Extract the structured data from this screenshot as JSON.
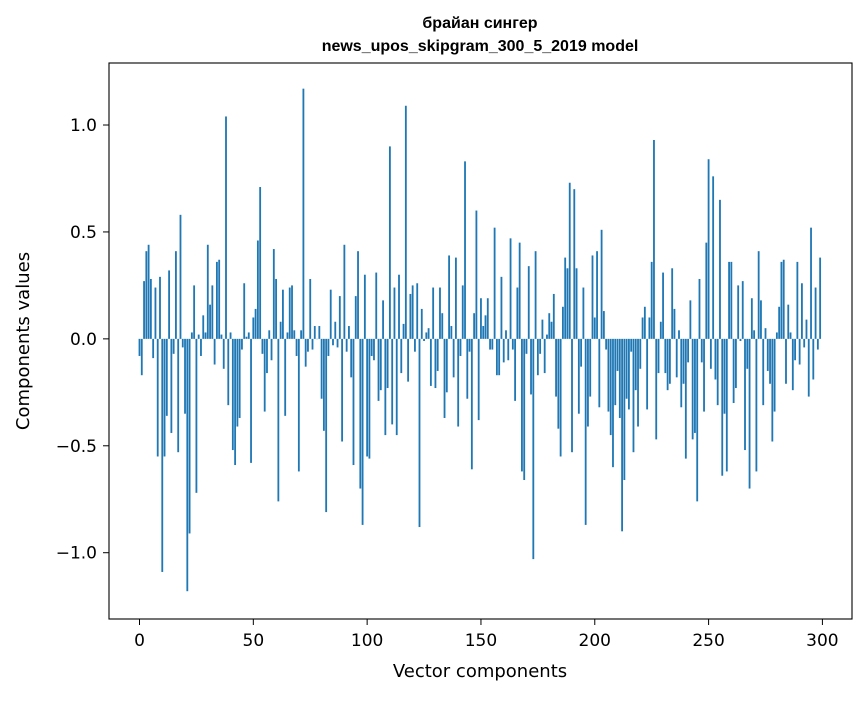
{
  "chart_data": {
    "type": "bar",
    "title_lines": [
      "брайан сингер",
      "news_upos_skipgram_300_5_2019 model"
    ],
    "xlabel": "Vector components",
    "ylabel": "Components values",
    "xlim": [
      -13.4,
      313
    ],
    "ylim": [
      -1.31,
      1.29
    ],
    "xticks": [
      0,
      50,
      100,
      150,
      200,
      250,
      300
    ],
    "yticks": [
      -1.0,
      -0.5,
      0.0,
      0.5,
      1.0
    ],
    "xtick_labels": [
      "0",
      "50",
      "100",
      "150",
      "200",
      "250",
      "300"
    ],
    "ytick_labels": [
      "−1.0",
      "−0.5",
      "0.0",
      "0.5",
      "1.0"
    ],
    "grid": false,
    "legend": "none",
    "color": "#1f77b4",
    "x_start": 0,
    "values": [
      -0.08,
      -0.17,
      0.27,
      0.41,
      0.44,
      0.28,
      -0.09,
      0.24,
      -0.55,
      0.29,
      -1.09,
      -0.55,
      -0.36,
      0.32,
      -0.44,
      -0.07,
      0.41,
      -0.53,
      0.58,
      -0.04,
      -0.35,
      -1.18,
      -0.91,
      0.03,
      0.25,
      -0.72,
      0.02,
      -0.08,
      0.11,
      0.03,
      0.44,
      0.16,
      0.25,
      -0.12,
      0.36,
      0.37,
      0.02,
      -0.14,
      1.04,
      -0.31,
      0.03,
      -0.52,
      -0.59,
      -0.41,
      -0.37,
      -0.05,
      0.26,
      0.01,
      0.03,
      -0.58,
      0.1,
      0.14,
      0.46,
      0.71,
      -0.07,
      -0.34,
      -0.16,
      0.04,
      -0.1,
      0.42,
      0.28,
      -0.76,
      0.08,
      0.23,
      -0.36,
      0.03,
      0.24,
      0.25,
      0.04,
      -0.08,
      -0.62,
      0.04,
      1.17,
      -0.13,
      -0.06,
      0.28,
      -0.05,
      0.06,
      0.0,
      0.06,
      -0.28,
      -0.43,
      -0.81,
      -0.08,
      0.23,
      -0.03,
      0.08,
      -0.04,
      0.2,
      -0.48,
      0.44,
      -0.06,
      0.06,
      -0.18,
      -0.59,
      0.2,
      0.41,
      -0.7,
      -0.87,
      0.3,
      -0.55,
      -0.56,
      -0.08,
      -0.1,
      0.31,
      -0.29,
      -0.24,
      0.18,
      -0.45,
      -0.23,
      0.9,
      -0.4,
      0.24,
      -0.45,
      0.3,
      -0.16,
      0.07,
      1.09,
      -0.2,
      0.21,
      0.25,
      -0.06,
      0.26,
      -0.88,
      0.14,
      -0.01,
      0.03,
      0.05,
      -0.22,
      0.24,
      -0.23,
      -0.15,
      0.24,
      0.12,
      -0.37,
      -0.25,
      0.39,
      0.06,
      -0.18,
      0.38,
      -0.41,
      -0.08,
      0.25,
      0.83,
      -0.28,
      -0.06,
      -0.61,
      0.12,
      0.6,
      -0.38,
      0.19,
      0.06,
      0.11,
      0.19,
      -0.05,
      -0.05,
      0.52,
      -0.17,
      -0.17,
      0.29,
      -0.11,
      0.04,
      -0.1,
      0.47,
      -0.05,
      -0.29,
      0.24,
      0.45,
      -0.62,
      -0.66,
      -0.07,
      0.34,
      -0.26,
      -1.03,
      0.41,
      -0.17,
      -0.07,
      0.09,
      -0.16,
      0.02,
      0.12,
      0.08,
      0.21,
      -0.27,
      -0.42,
      -0.55,
      0.15,
      0.38,
      0.33,
      0.73,
      -0.53,
      0.7,
      0.33,
      -0.35,
      -0.13,
      0.24,
      -0.87,
      -0.41,
      -0.27,
      0.39,
      0.1,
      0.41,
      -0.32,
      0.51,
      0.13,
      -0.05,
      -0.34,
      -0.45,
      -0.6,
      -0.31,
      -0.15,
      -0.37,
      -0.9,
      -0.66,
      -0.28,
      -0.33,
      -0.06,
      -0.53,
      -0.24,
      -0.41,
      -0.14,
      0.1,
      0.15,
      -0.33,
      0.1,
      0.36,
      0.93,
      -0.47,
      -0.16,
      0.08,
      0.31,
      -0.16,
      -0.24,
      -0.21,
      0.33,
      0.14,
      -0.18,
      0.04,
      -0.32,
      -0.21,
      -0.56,
      -0.11,
      0.18,
      -0.47,
      -0.44,
      -0.76,
      0.28,
      -0.11,
      -0.34,
      0.45,
      0.84,
      -0.14,
      0.76,
      -0.19,
      -0.31,
      0.65,
      -0.64,
      -0.35,
      -0.62,
      0.36,
      0.36,
      -0.3,
      -0.23,
      0.25,
      -0.01,
      0.27,
      -0.52,
      -0.14,
      -0.7,
      0.19,
      0.04,
      -0.62,
      0.41,
      0.18,
      -0.31,
      0.05,
      -0.15,
      -0.21,
      -0.48,
      -0.34,
      0.03,
      0.15,
      0.36,
      0.37,
      -0.21,
      0.16,
      0.03,
      -0.24,
      -0.1,
      0.36,
      -0.12,
      0.26,
      -0.04,
      0.09,
      -0.27,
      0.52,
      -0.19,
      0.24,
      -0.05,
      0.38
    ]
  }
}
